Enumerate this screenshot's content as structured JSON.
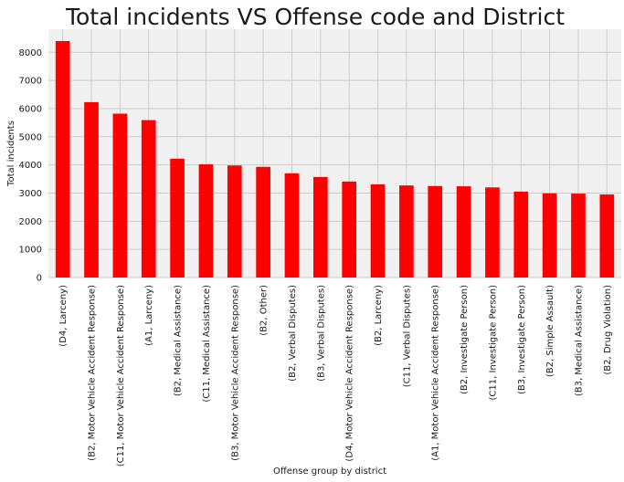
{
  "chart_data": {
    "type": "bar",
    "title": "Total incidents VS Offense code and District",
    "xlabel": "Offense group by district",
    "ylabel": "Total incidents",
    "categories": [
      "(D4, Larceny)",
      "(B2, Motor Vehicle Accident Response)",
      "(C11, Motor Vehicle Accident Response)",
      "(A1, Larceny)",
      "(B2, Medical Assistance)",
      "(C11, Medical Assistance)",
      "(B3, Motor Vehicle Accident Response)",
      "(B2, Other)",
      "(B2, Verbal Disputes)",
      "(B3, Verbal Disputes)",
      "(D4, Motor Vehicle Accident Response)",
      "(B2, Larceny)",
      "(C11, Verbal Disputes)",
      "(A1, Motor Vehicle Accident Response)",
      "(B2, Investigate Person)",
      "(C11, Investigate Person)",
      "(B3, Investigate Person)",
      "(B2, Simple Assault)",
      "(B3, Medical Assistance)",
      "(B2, Drug Violation)"
    ],
    "values": [
      8400,
      6230,
      5820,
      5590,
      4220,
      4020,
      3980,
      3930,
      3700,
      3570,
      3410,
      3310,
      3270,
      3250,
      3240,
      3200,
      3050,
      2990,
      2980,
      2950
    ],
    "yticks": [
      "0",
      "1000",
      "2000",
      "3000",
      "4000",
      "5000",
      "6000",
      "7000",
      "8000"
    ],
    "ylim": [
      0,
      8820
    ],
    "grid": true,
    "bar_color": "#ff0000",
    "plot_background": "#f0f0f0",
    "grid_color": "#cbcbcb"
  }
}
